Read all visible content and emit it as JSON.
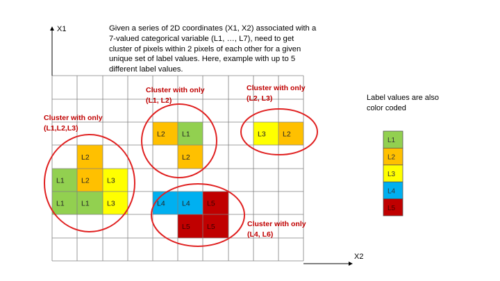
{
  "description": "Given a series of 2D coordinates (X1, X2) associated with a 7-valued categorical variable (L1, …, L7), need to get cluster of pixels within 2 pixels of each other for a given unique set of label values. Here, example with up to 5 different label values.",
  "axes": {
    "x1": "X1",
    "x2": "X2"
  },
  "legend": {
    "caption": "Label values are also color coded",
    "items": [
      {
        "label": "L1",
        "color": "#92d050"
      },
      {
        "label": "L2",
        "color": "#ffc000"
      },
      {
        "label": "L3",
        "color": "#ffff00"
      },
      {
        "label": "L4",
        "color": "#00b0f0"
      },
      {
        "label": "L5",
        "color": "#c00000"
      }
    ]
  },
  "cluster_labels": {
    "c1": "Cluster with only (L1,L2,L3)",
    "c2": "Cluster with only (L1, L2)",
    "c3": "Cluster with only (L2, L3)",
    "c4": "Cluster with only (L4, L6)"
  },
  "colors": {
    "L1": "#92d050",
    "L2": "#ffc000",
    "L3": "#ffff00",
    "L4": "#00b0f0",
    "L5": "#c00000",
    "ellipse": "#e02020",
    "grid": "#7f7f7f"
  },
  "cells": [
    {
      "col": 1,
      "row": 3,
      "label": "L2"
    },
    {
      "col": 0,
      "row": 4,
      "label": "L1"
    },
    {
      "col": 1,
      "row": 4,
      "label": "L2"
    },
    {
      "col": 2,
      "row": 4,
      "label": "L3"
    },
    {
      "col": 0,
      "row": 5,
      "label": "L1"
    },
    {
      "col": 1,
      "row": 5,
      "label": "L1"
    },
    {
      "col": 2,
      "row": 5,
      "label": "L3"
    },
    {
      "col": 4,
      "row": 2,
      "label": "L2"
    },
    {
      "col": 5,
      "row": 2,
      "label": "L1"
    },
    {
      "col": 5,
      "row": 3,
      "label": "L2"
    },
    {
      "col": 8,
      "row": 2,
      "label": "L3"
    },
    {
      "col": 9,
      "row": 2,
      "label": "L2"
    },
    {
      "col": 4,
      "row": 5,
      "label": "L4"
    },
    {
      "col": 5,
      "row": 5,
      "label": "L4"
    },
    {
      "col": 6,
      "row": 5,
      "label": "L5"
    },
    {
      "col": 5,
      "row": 6,
      "label": "L5"
    },
    {
      "col": 6,
      "row": 6,
      "label": "L5"
    }
  ]
}
